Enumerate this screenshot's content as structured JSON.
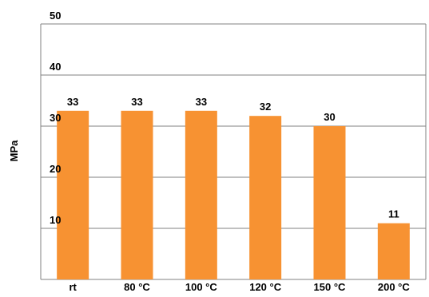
{
  "chart_data": {
    "type": "bar",
    "categories": [
      "rt",
      "80 °C",
      "100 °C",
      "120 °C",
      "150 °C",
      "200 °C"
    ],
    "values": [
      33,
      33,
      33,
      32,
      30,
      11
    ],
    "data_labels": [
      "33",
      "33",
      "33",
      "32",
      "30",
      "11"
    ],
    "ylabel": "MPa",
    "xlabel": "",
    "ylim": [
      0,
      50
    ],
    "yticks": [
      "10",
      "20",
      "30",
      "40",
      "50"
    ],
    "bar_color": "#F79232",
    "grid": true,
    "legend": "none"
  }
}
